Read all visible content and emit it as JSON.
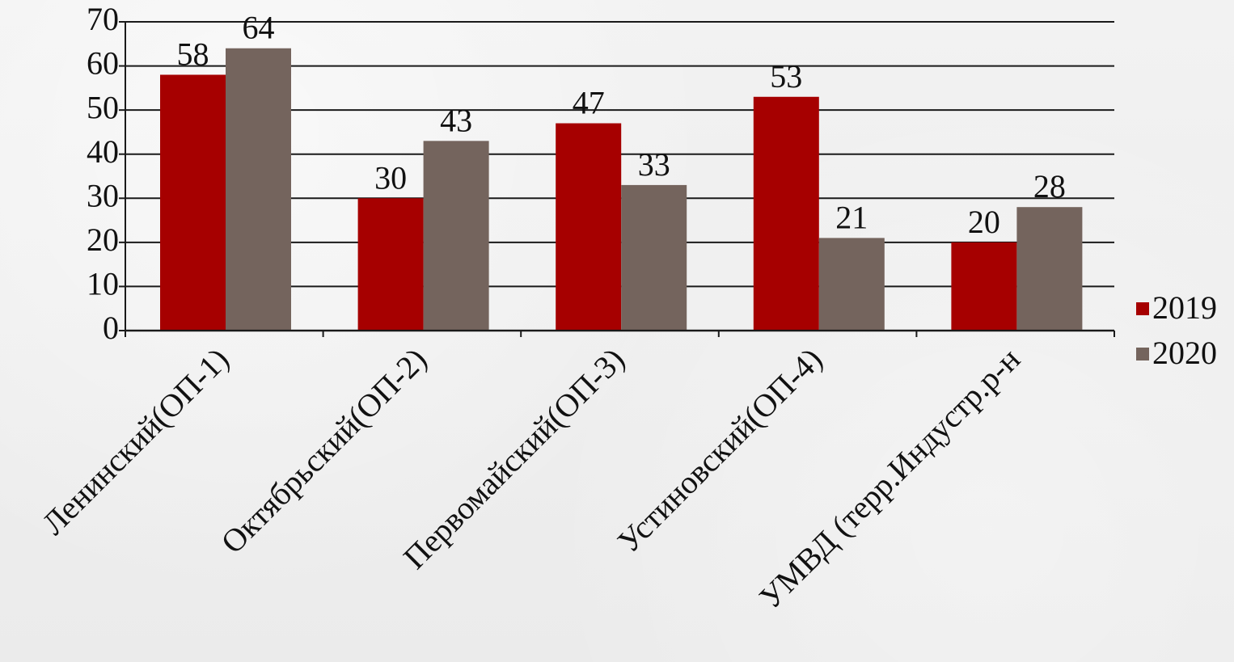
{
  "chart_data": {
    "type": "bar",
    "categories": [
      "Ленинский(ОП-1)",
      "Октябрьский(ОП-2)",
      "Первомайский(ОП-3)",
      "Устиновский(ОП-4)",
      "УМВД (терр.Индустр.р-н"
    ],
    "series": [
      {
        "name": "2019",
        "values": [
          58,
          30,
          47,
          53,
          20
        ],
        "color": "#a60000"
      },
      {
        "name": "2020",
        "values": [
          64,
          43,
          33,
          21,
          28
        ],
        "color": "#74645d"
      }
    ],
    "ylim": [
      0,
      70
    ],
    "y_ticks": [
      0,
      10,
      20,
      30,
      40,
      50,
      60,
      70
    ],
    "grid": true,
    "legend_position": "right",
    "xlabel": "",
    "ylabel": "",
    "title": ""
  }
}
